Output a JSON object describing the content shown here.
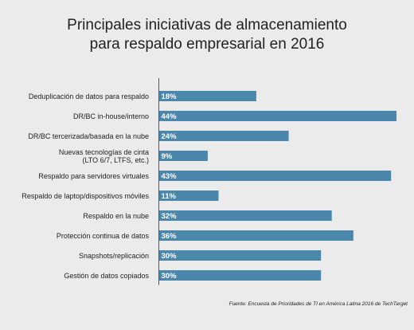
{
  "chart_data": {
    "type": "bar",
    "orientation": "horizontal",
    "title_line1": "Principales iniciativas de almacenamiento",
    "title_line2": "para respaldo empresarial en 2016",
    "categories": [
      [
        "Deduplicación de datos para respaldo"
      ],
      [
        "DR/BC in-house/interno"
      ],
      [
        "DR/BC tercerizada/basada en la nube"
      ],
      [
        "Nuevas tecnologías de cinta",
        "(LTO 6/7, LTFS, etc.)"
      ],
      [
        "Respaldo para servidores virtuales"
      ],
      [
        "Respaldo de laptop/dispositivos móviles"
      ],
      [
        "Respaldo en la nube"
      ],
      [
        "Protección continua de datos"
      ],
      [
        "Snapshots/replicación"
      ],
      [
        "Gestión de datos copiados"
      ]
    ],
    "values": [
      18,
      44,
      24,
      9,
      43,
      11,
      32,
      36,
      30,
      30
    ],
    "value_labels": [
      "18%",
      "44%",
      "24%",
      "9%",
      "43%",
      "11%",
      "32%",
      "36%",
      "30%",
      "30%"
    ],
    "xlim": [
      0,
      44
    ],
    "grid": false,
    "bar_color": "#4a87ab",
    "source": "Fuente: Encuesta de Prioridades de TI en América Latina 2016 de TechTarget"
  }
}
